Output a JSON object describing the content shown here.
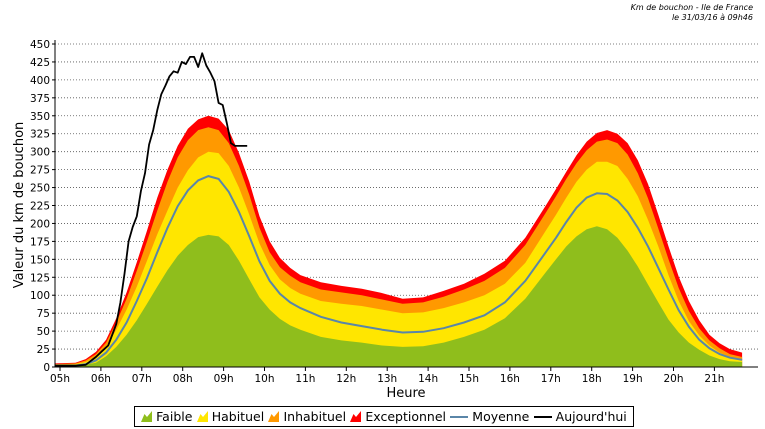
{
  "header": {
    "line1": "Km de bouchon - Ile de France",
    "line2": "le 31/03/16 à 09h46"
  },
  "legend": {
    "items": [
      {
        "label": "Faible",
        "color": "#8fbe1c",
        "kind": "area"
      },
      {
        "label": "Habituel",
        "color": "#ffe600",
        "kind": "area"
      },
      {
        "label": "Inhabituel",
        "color": "#ff9900",
        "kind": "area"
      },
      {
        "label": "Exceptionnel",
        "color": "#ff0000",
        "kind": "area"
      },
      {
        "label": "Moyenne",
        "color": "#5a86a8",
        "kind": "line"
      },
      {
        "label": "Aujourd'hui",
        "color": "#000000",
        "kind": "line"
      }
    ]
  },
  "chart_data": {
    "type": "area",
    "xlabel": "Heure",
    "ylabel": "Valeur du  km de bouchon",
    "xlim": [
      5,
      22
    ],
    "ylim": [
      0,
      450
    ],
    "x_ticks": [
      5,
      6,
      7,
      8,
      9,
      10,
      11,
      12,
      13,
      14,
      15,
      16,
      17,
      18,
      19,
      20,
      21
    ],
    "x_tick_labels": [
      "05h",
      "06h",
      "07h",
      "08h",
      "09h",
      "10h",
      "11h",
      "12h",
      "13h",
      "14h",
      "15h",
      "16h",
      "17h",
      "18h",
      "19h",
      "20h",
      "21h"
    ],
    "y_ticks": [
      0,
      25,
      50,
      75,
      100,
      125,
      150,
      175,
      200,
      225,
      250,
      275,
      300,
      325,
      350,
      375,
      400,
      425,
      450
    ],
    "grid": "horizontal-dotted",
    "legend_position": "bottom",
    "x": [
      5.0,
      5.5,
      5.75,
      6.0,
      6.25,
      6.5,
      6.75,
      7.0,
      7.25,
      7.5,
      7.75,
      8.0,
      8.25,
      8.5,
      8.75,
      9.0,
      9.25,
      9.5,
      9.75,
      10.0,
      10.25,
      10.5,
      10.75,
      11.0,
      11.5,
      12.0,
      12.5,
      13.0,
      13.5,
      14.0,
      14.5,
      15.0,
      15.5,
      16.0,
      16.5,
      17.0,
      17.25,
      17.5,
      17.75,
      18.0,
      18.25,
      18.5,
      18.75,
      19.0,
      19.25,
      19.5,
      19.75,
      20.0,
      20.25,
      20.5,
      20.75,
      21.0,
      21.25,
      21.5,
      21.8
    ],
    "series": [
      {
        "name": "Faible",
        "values": [
          2,
          2,
          3,
          6,
          15,
          28,
          45,
          65,
          88,
          112,
          135,
          155,
          170,
          181,
          184,
          182,
          170,
          148,
          122,
          97,
          80,
          67,
          58,
          52,
          42,
          37,
          34,
          30,
          28,
          29,
          34,
          42,
          52,
          68,
          95,
          132,
          150,
          168,
          182,
          192,
          196,
          192,
          180,
          162,
          140,
          115,
          90,
          66,
          48,
          34,
          24,
          16,
          11,
          8,
          7
        ]
      },
      {
        "name": "Habituel",
        "values": [
          3,
          4,
          7,
          14,
          28,
          52,
          80,
          112,
          148,
          185,
          218,
          250,
          274,
          292,
          300,
          298,
          280,
          250,
          212,
          172,
          142,
          122,
          110,
          102,
          92,
          88,
          85,
          80,
          75,
          76,
          82,
          90,
          100,
          116,
          145,
          190,
          212,
          236,
          258,
          275,
          286,
          286,
          280,
          262,
          238,
          205,
          168,
          128,
          92,
          64,
          44,
          30,
          20,
          14,
          11
        ]
      },
      {
        "name": "Inhabituel",
        "values": [
          4,
          5,
          9,
          18,
          34,
          62,
          95,
          134,
          175,
          218,
          258,
          292,
          316,
          330,
          334,
          330,
          312,
          280,
          240,
          194,
          160,
          139,
          127,
          118,
          108,
          104,
          100,
          94,
          88,
          90,
          98,
          108,
          120,
          138,
          170,
          215,
          238,
          262,
          284,
          302,
          314,
          317,
          312,
          296,
          270,
          235,
          193,
          150,
          110,
          78,
          54,
          37,
          26,
          18,
          14
        ]
      },
      {
        "name": "Exceptionnel",
        "values": [
          5,
          6,
          11,
          21,
          38,
          68,
          104,
          146,
          190,
          236,
          275,
          308,
          332,
          345,
          350,
          346,
          330,
          298,
          258,
          210,
          175,
          152,
          138,
          128,
          118,
          113,
          109,
          103,
          95,
          97,
          106,
          116,
          130,
          148,
          180,
          225,
          248,
          272,
          295,
          314,
          326,
          330,
          325,
          312,
          288,
          255,
          212,
          168,
          126,
          92,
          65,
          45,
          33,
          25,
          20
        ]
      },
      {
        "name": "Moyenne",
        "values": [
          2,
          2,
          4,
          9,
          20,
          38,
          62,
          92,
          124,
          160,
          194,
          224,
          246,
          260,
          266,
          262,
          244,
          216,
          182,
          147,
          120,
          102,
          90,
          82,
          70,
          62,
          57,
          52,
          48,
          49,
          54,
          62,
          72,
          90,
          120,
          160,
          180,
          202,
          222,
          236,
          242,
          241,
          232,
          216,
          194,
          168,
          138,
          108,
          79,
          56,
          38,
          26,
          18,
          13,
          10
        ]
      }
    ],
    "today": {
      "name": "Aujourd'hui",
      "x": [
        5.0,
        5.5,
        5.75,
        6.0,
        6.15,
        6.3,
        6.4,
        6.5,
        6.6,
        6.7,
        6.8,
        6.9,
        7.0,
        7.1,
        7.2,
        7.3,
        7.4,
        7.5,
        7.6,
        7.7,
        7.8,
        7.9,
        8.0,
        8.1,
        8.2,
        8.3,
        8.4,
        8.5,
        8.6,
        8.7,
        8.8,
        8.9,
        9.0,
        9.1,
        9.2,
        9.3,
        9.4,
        9.5,
        9.6,
        9.7
      ],
      "values": [
        2,
        2,
        3,
        14,
        22,
        30,
        45,
        60,
        90,
        130,
        175,
        195,
        210,
        245,
        270,
        310,
        330,
        358,
        380,
        392,
        405,
        412,
        410,
        425,
        422,
        432,
        432,
        418,
        437,
        420,
        410,
        398,
        368,
        365,
        340,
        312,
        308,
        308,
        308,
        308
      ]
    }
  }
}
